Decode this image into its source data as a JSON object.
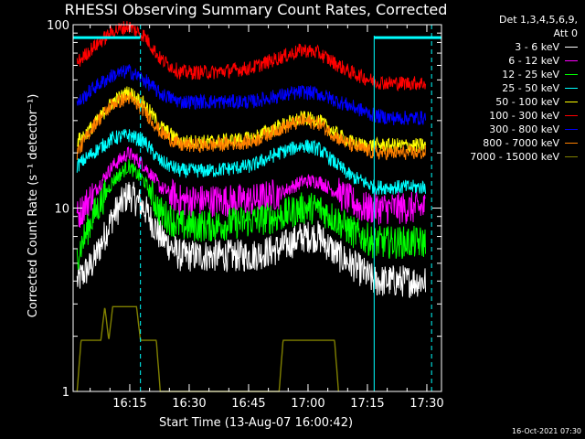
{
  "chart_data": {
    "type": "line",
    "title": "RHESSI Observing Summary Count Rates, Corrected",
    "xlabel": "Start Time (13-Aug-07 16:00:42)",
    "ylabel": "Corrected Count Rate (s⁻¹ detector⁻¹)",
    "x_unit": "minutes after 16:00:42",
    "xlim": [
      0,
      93
    ],
    "ylim": [
      1,
      100
    ],
    "yscale": "log",
    "xticks": [
      {
        "x": 14.3,
        "label": "16:15"
      },
      {
        "x": 29.3,
        "label": "16:30"
      },
      {
        "x": 44.3,
        "label": "16:45"
      },
      {
        "x": 59.3,
        "label": "17:00"
      },
      {
        "x": 74.3,
        "label": "17:15"
      },
      {
        "x": 89.3,
        "label": "17:30"
      }
    ],
    "yticks": [
      {
        "y": 1,
        "label": "1"
      },
      {
        "y": 10,
        "label": "10"
      },
      {
        "y": 100,
        "label": "100"
      }
    ],
    "grid": false,
    "legend_position": "top-right",
    "legend_header": [
      "Det 1,3,4,5,6,9,",
      "Att 0"
    ],
    "night_marks": {
      "dashed_lines_x": [
        17.0,
        90.5
      ],
      "solid_lines_x": [
        76.0
      ],
      "bars": [
        {
          "x0": 0,
          "x1": 17.0,
          "y": 85
        },
        {
          "x0": 76.0,
          "x1": 93.0,
          "y": 85
        }
      ],
      "color": "#00ffff"
    },
    "series": [
      {
        "name": "3 - 6 keV",
        "color": "#ffffff",
        "points": [
          [
            1,
            4
          ],
          [
            5,
            5
          ],
          [
            10,
            9
          ],
          [
            14,
            12
          ],
          [
            18,
            10
          ],
          [
            22,
            7
          ],
          [
            27,
            5.5
          ],
          [
            35,
            5.5
          ],
          [
            45,
            5.5
          ],
          [
            52,
            6
          ],
          [
            58,
            7
          ],
          [
            62,
            7
          ],
          [
            67,
            5.5
          ],
          [
            70,
            5
          ],
          [
            73,
            4.5
          ],
          [
            76,
            4
          ],
          [
            80,
            4
          ],
          [
            85,
            4
          ],
          [
            89,
            4
          ]
        ]
      },
      {
        "name": "6 - 12 keV",
        "color": "#ff00ff",
        "points": [
          [
            1,
            9
          ],
          [
            5,
            12
          ],
          [
            10,
            17
          ],
          [
            14,
            20
          ],
          [
            18,
            17
          ],
          [
            22,
            13
          ],
          [
            27,
            11
          ],
          [
            35,
            11
          ],
          [
            45,
            11
          ],
          [
            52,
            12
          ],
          [
            58,
            14
          ],
          [
            62,
            14
          ],
          [
            67,
            12
          ],
          [
            70,
            11
          ],
          [
            73,
            10
          ],
          [
            76,
            10
          ],
          [
            80,
            10
          ],
          [
            85,
            10
          ],
          [
            89,
            10
          ]
        ]
      },
      {
        "name": "12 - 25 keV",
        "color": "#00ff00",
        "points": [
          [
            1,
            5.5
          ],
          [
            5,
            9
          ],
          [
            10,
            14
          ],
          [
            14,
            17
          ],
          [
            18,
            14
          ],
          [
            22,
            9.5
          ],
          [
            27,
            8
          ],
          [
            35,
            8
          ],
          [
            45,
            8.5
          ],
          [
            52,
            9
          ],
          [
            58,
            10
          ],
          [
            62,
            10
          ],
          [
            67,
            8.5
          ],
          [
            70,
            7.5
          ],
          [
            73,
            7
          ],
          [
            76,
            6.5
          ],
          [
            80,
            6.5
          ],
          [
            85,
            6.5
          ],
          [
            89,
            6.5
          ]
        ]
      },
      {
        "name": "25 - 50 keV",
        "color": "#00ffff",
        "points": [
          [
            1,
            17
          ],
          [
            5,
            20
          ],
          [
            10,
            24
          ],
          [
            14,
            25
          ],
          [
            18,
            23
          ],
          [
            22,
            18
          ],
          [
            27,
            16
          ],
          [
            35,
            16
          ],
          [
            45,
            17
          ],
          [
            52,
            20
          ],
          [
            58,
            22
          ],
          [
            62,
            21
          ],
          [
            67,
            17
          ],
          [
            70,
            15
          ],
          [
            73,
            14
          ],
          [
            76,
            13
          ],
          [
            80,
            13
          ],
          [
            85,
            13
          ],
          [
            89,
            13
          ]
        ]
      },
      {
        "name": "50 - 100 keV",
        "color": "#ffff00",
        "points": [
          [
            1,
            23
          ],
          [
            5,
            28
          ],
          [
            10,
            38
          ],
          [
            14,
            43
          ],
          [
            18,
            37
          ],
          [
            22,
            28
          ],
          [
            27,
            23
          ],
          [
            35,
            23
          ],
          [
            45,
            24
          ],
          [
            52,
            28
          ],
          [
            58,
            31
          ],
          [
            62,
            30
          ],
          [
            67,
            25
          ],
          [
            70,
            23
          ],
          [
            73,
            22
          ],
          [
            76,
            22
          ],
          [
            80,
            22
          ],
          [
            85,
            22
          ],
          [
            89,
            22
          ]
        ]
      },
      {
        "name": "100 - 300 keV",
        "color": "#ff0000",
        "points": [
          [
            1,
            62
          ],
          [
            5,
            75
          ],
          [
            10,
            92
          ],
          [
            14,
            98
          ],
          [
            18,
            87
          ],
          [
            22,
            65
          ],
          [
            27,
            55
          ],
          [
            35,
            55
          ],
          [
            45,
            58
          ],
          [
            52,
            66
          ],
          [
            58,
            73
          ],
          [
            62,
            70
          ],
          [
            67,
            60
          ],
          [
            70,
            55
          ],
          [
            73,
            52
          ],
          [
            76,
            49
          ],
          [
            80,
            48
          ],
          [
            85,
            48
          ],
          [
            89,
            48
          ]
        ]
      },
      {
        "name": "300 - 800 keV",
        "color": "#0000ff",
        "points": [
          [
            1,
            37
          ],
          [
            5,
            45
          ],
          [
            10,
            53
          ],
          [
            14,
            56
          ],
          [
            18,
            50
          ],
          [
            22,
            42
          ],
          [
            27,
            38
          ],
          [
            35,
            38
          ],
          [
            45,
            38
          ],
          [
            52,
            41
          ],
          [
            58,
            43
          ],
          [
            62,
            42
          ],
          [
            67,
            38
          ],
          [
            70,
            36
          ],
          [
            73,
            34
          ],
          [
            76,
            32
          ],
          [
            80,
            31
          ],
          [
            85,
            31
          ],
          [
            89,
            31
          ]
        ]
      },
      {
        "name": "800 - 7000 keV",
        "color": "#ff8000",
        "points": [
          [
            1,
            20
          ],
          [
            5,
            28
          ],
          [
            10,
            37
          ],
          [
            14,
            40
          ],
          [
            18,
            34
          ],
          [
            22,
            26
          ],
          [
            27,
            22
          ],
          [
            35,
            22
          ],
          [
            45,
            23
          ],
          [
            52,
            27
          ],
          [
            58,
            30
          ],
          [
            62,
            29
          ],
          [
            67,
            24
          ],
          [
            70,
            22
          ],
          [
            73,
            21
          ],
          [
            76,
            20
          ],
          [
            80,
            20
          ],
          [
            85,
            20
          ],
          [
            89,
            20
          ]
        ]
      },
      {
        "name": "7000 - 15000 keV",
        "color": "#808000",
        "points": [
          [
            1,
            1
          ],
          [
            2,
            1.9
          ],
          [
            7,
            1.9
          ],
          [
            8,
            2.9
          ],
          [
            9,
            1.9
          ],
          [
            10,
            2.9
          ],
          [
            16,
            2.9
          ],
          [
            17,
            1.9
          ],
          [
            21,
            1.9
          ],
          [
            22,
            1
          ],
          [
            52,
            1
          ],
          [
            53,
            1.9
          ],
          [
            66,
            1.9
          ],
          [
            67,
            1
          ]
        ]
      }
    ]
  },
  "footer": {
    "stamp": "16-Oct-2021 07:30"
  }
}
